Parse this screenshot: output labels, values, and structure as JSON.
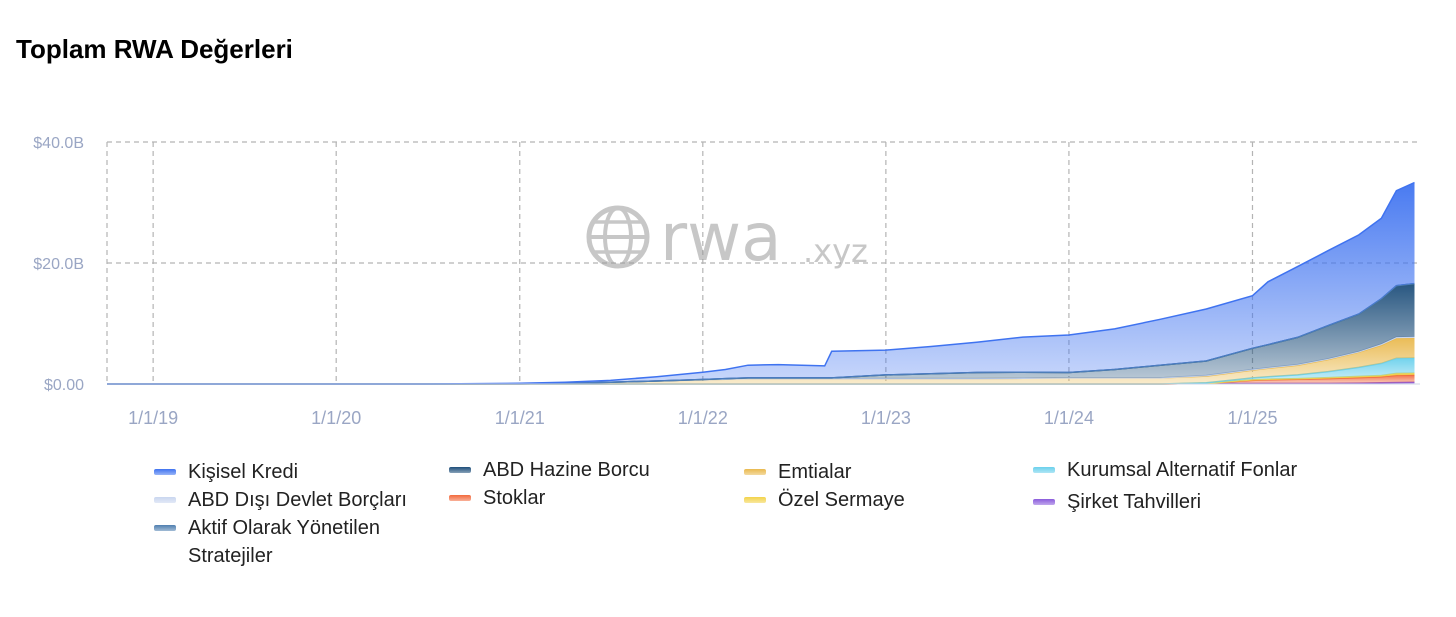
{
  "page": {
    "title": "Toplam RWA Değerleri"
  },
  "watermark": {
    "text": "rwa",
    "suffix": ".xyz"
  },
  "chart_data": {
    "type": "area",
    "stacked": true,
    "x": [
      "2018-10-01",
      "2019-01-01",
      "2019-07-01",
      "2020-01-01",
      "2020-07-01",
      "2021-01-01",
      "2021-04-01",
      "2021-07-01",
      "2021-10-01",
      "2022-01-01",
      "2022-02-15",
      "2022-04-01",
      "2022-06-01",
      "2022-09-01",
      "2022-09-15",
      "2023-01-01",
      "2023-04-01",
      "2023-07-01",
      "2023-10-01",
      "2024-01-01",
      "2024-04-01",
      "2024-07-01",
      "2024-10-01",
      "2025-01-01",
      "2025-02-01",
      "2025-04-01",
      "2025-06-01",
      "2025-08-01",
      "2025-09-15",
      "2025-10-15",
      "2025-11-20"
    ],
    "xticks": [
      "1/1/19",
      "1/1/20",
      "1/1/21",
      "1/1/22",
      "1/1/23",
      "1/1/24",
      "1/1/25"
    ],
    "xtick_dates": [
      "2019-01-01",
      "2020-01-01",
      "2021-01-01",
      "2022-01-01",
      "2023-01-01",
      "2024-01-01",
      "2025-01-01"
    ],
    "xlim": [
      "2018-10-01",
      "2025-12-01"
    ],
    "yticks": [
      "$0.00",
      "$20.0B",
      "$40.0B"
    ],
    "ytick_values": [
      0,
      20,
      40
    ],
    "ylim": [
      0,
      40
    ],
    "grid": true,
    "legend_position": "bottom",
    "series": [
      {
        "name": "Şirket Tahvilleri",
        "color": "#8a5bdc",
        "values": [
          0,
          0,
          0,
          0,
          0,
          0,
          0,
          0,
          0,
          0,
          0,
          0,
          0,
          0,
          0,
          0,
          0,
          0,
          0,
          0,
          0,
          0,
          0.1,
          0.1,
          0.1,
          0.1,
          0.1,
          0.15,
          0.2,
          0.25,
          0.3
        ]
      },
      {
        "name": "Stoklar",
        "color": "#f26a3d",
        "values": [
          0,
          0,
          0,
          0,
          0,
          0,
          0,
          0,
          0,
          0,
          0,
          0,
          0,
          0,
          0,
          0,
          0,
          0,
          0,
          0,
          0,
          0,
          0,
          0.5,
          0.6,
          0.7,
          0.8,
          0.9,
          1.0,
          1.2,
          1.2
        ]
      },
      {
        "name": "Özel Sermaye",
        "color": "#f2d34a",
        "values": [
          0,
          0,
          0,
          0,
          0,
          0,
          0,
          0,
          0,
          0,
          0,
          0,
          0,
          0,
          0,
          0,
          0,
          0,
          0,
          0,
          0,
          0,
          0,
          0.1,
          0.1,
          0.1,
          0.15,
          0.2,
          0.2,
          0.3,
          0.3
        ]
      },
      {
        "name": "Kurumsal Alternatif Fonlar",
        "color": "#6ad0ec",
        "values": [
          0,
          0,
          0,
          0,
          0,
          0,
          0,
          0,
          0,
          0,
          0,
          0,
          0,
          0,
          0,
          0,
          0,
          0,
          0,
          0,
          0,
          0,
          0.1,
          0.3,
          0.4,
          0.6,
          1.0,
          1.5,
          2.0,
          2.5,
          2.5
        ]
      },
      {
        "name": "Emtialar",
        "color": "#e9b94e",
        "values": [
          0,
          0,
          0,
          0,
          0,
          0.02,
          0.1,
          0.3,
          0.5,
          0.7,
          0.8,
          0.9,
          0.9,
          0.9,
          0.9,
          0.9,
          0.9,
          0.9,
          0.95,
          1.0,
          1.0,
          1.0,
          1.1,
          1.3,
          1.4,
          1.6,
          2.0,
          2.5,
          3.0,
          3.3,
          3.3
        ]
      },
      {
        "name": "ABD Dışı Devlet Borçları",
        "color": "#c9d6ef",
        "values": [
          0,
          0,
          0,
          0,
          0,
          0,
          0,
          0,
          0,
          0,
          0,
          0,
          0,
          0,
          0,
          0,
          0,
          0,
          0,
          0,
          0,
          0,
          0.1,
          0.1,
          0.1,
          0.1,
          0.1,
          0.1,
          0.2,
          0.2,
          0.2
        ]
      },
      {
        "name": "ABD Hazine Borcu",
        "color": "#1d4e7a",
        "values": [
          0,
          0,
          0,
          0,
          0,
          0,
          0,
          0,
          0,
          0.05,
          0.1,
          0.1,
          0.1,
          0.1,
          0.1,
          0.6,
          0.8,
          1.0,
          1.0,
          0.9,
          1.4,
          2.1,
          2.4,
          3.5,
          3.8,
          4.5,
          5.5,
          6.2,
          7.5,
          8.5,
          8.8
        ]
      },
      {
        "name": "Aktif Olarak Yönetilen Stratejiler",
        "color": "#4f7fb0",
        "values": [
          0,
          0,
          0,
          0,
          0,
          0,
          0,
          0,
          0,
          0,
          0,
          0,
          0,
          0,
          0,
          0,
          0,
          0,
          0,
          0,
          0,
          0,
          0,
          0,
          0,
          0,
          0,
          0,
          0,
          0,
          0
        ]
      },
      {
        "name": "Kişisel Kredi",
        "color": "#3f73f0",
        "values": [
          0,
          0,
          0,
          0,
          0,
          0.1,
          0.2,
          0.3,
          0.7,
          1.2,
          1.5,
          2.1,
          2.2,
          2.0,
          4.4,
          4.1,
          4.5,
          5.0,
          5.8,
          6.2,
          6.7,
          7.6,
          8.6,
          8.7,
          10.4,
          11.7,
          12.4,
          13.1,
          13.3,
          15.7,
          16.7
        ]
      }
    ]
  },
  "legend": {
    "items": [
      {
        "label": "Kişisel Kredi",
        "color": "#3f73f0"
      },
      {
        "label": "ABD Dışı Devlet Borçları",
        "color": "#c9d6ef"
      },
      {
        "label": "Aktif Olarak Yönetilen Stratejiler",
        "color": "#4f7fb0"
      },
      {
        "label": "ABD Hazine Borcu",
        "color": "#1d4e7a"
      },
      {
        "label": "Stoklar",
        "color": "#f26a3d"
      },
      {
        "label": "Emtialar",
        "color": "#e9b94e"
      },
      {
        "label": "Özel Sermaye",
        "color": "#f2d34a"
      },
      {
        "label": "Kurumsal Alternatif Fonlar",
        "color": "#6ad0ec"
      },
      {
        "label": "Şirket Tahvilleri",
        "color": "#8a5bdc"
      }
    ]
  }
}
